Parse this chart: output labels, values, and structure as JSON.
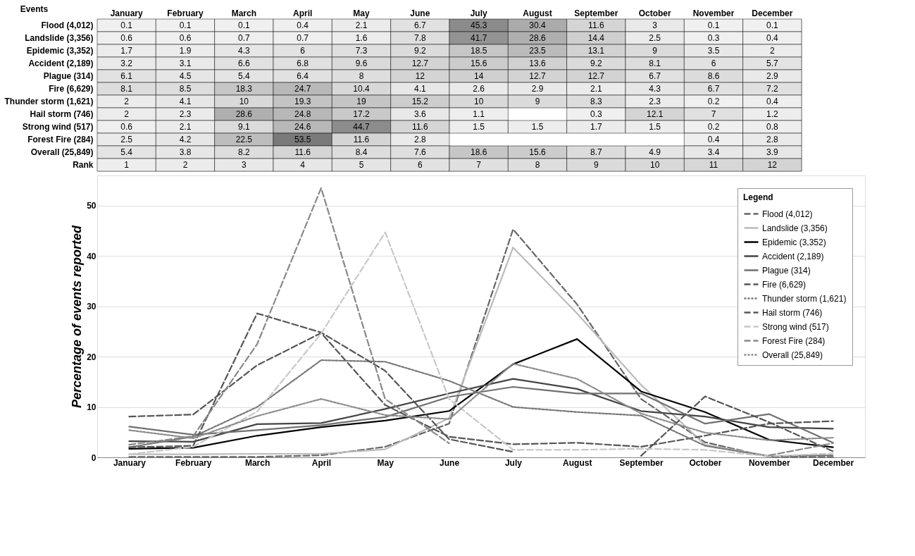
{
  "chart_data": [
    {
      "type": "heatmap",
      "ylabel": "Events",
      "data_labels": true,
      "categories": [
        "January",
        "February",
        "March",
        "April",
        "May",
        "June",
        "July",
        "August",
        "September",
        "October",
        "November",
        "December"
      ],
      "y_categories": [
        "Flood (4,012)",
        "Landslide (3,356)",
        "Epidemic (3,352)",
        "Accident (2,189)",
        "Plague (314)",
        "Fire (6,629)",
        "Thunder storm (1,621)",
        "Hail storm (746)",
        "Strong wind (517)",
        "Forest Fire (284)",
        "Overall (25,849)",
        "Rank"
      ],
      "cells": [
        [
          0.1,
          0.1,
          0.1,
          0.4,
          2.1,
          6.7,
          45.3,
          30.4,
          11.6,
          3,
          0.1,
          0.1
        ],
        [
          0.6,
          0.6,
          0.7,
          0.7,
          1.6,
          7.8,
          41.7,
          28.6,
          14.4,
          2.5,
          0.3,
          0.4
        ],
        [
          1.7,
          1.9,
          4.3,
          6,
          7.3,
          9.2,
          18.5,
          23.5,
          13.1,
          9,
          3.5,
          2
        ],
        [
          3.2,
          3.1,
          6.6,
          6.8,
          9.6,
          12.7,
          15.6,
          13.6,
          9.2,
          8.1,
          6,
          5.7
        ],
        [
          6.1,
          4.5,
          5.4,
          6.4,
          8,
          12,
          14,
          12.7,
          12.7,
          6.7,
          8.6,
          2.9
        ],
        [
          8.1,
          8.5,
          18.3,
          24.7,
          10.4,
          4.1,
          2.6,
          2.9,
          2.1,
          4.3,
          6.7,
          7.2
        ],
        [
          2,
          4.1,
          10,
          19.3,
          19,
          15.2,
          10,
          9,
          8.3,
          2.3,
          0.2,
          0.4
        ],
        [
          2,
          2.3,
          28.6,
          24.8,
          17.2,
          3.6,
          1.1,
          null,
          0.3,
          12.1,
          7,
          1.2
        ],
        [
          0.6,
          2.1,
          9.1,
          24.6,
          44.7,
          11.6,
          1.5,
          1.5,
          1.7,
          1.5,
          0.2,
          0.8
        ],
        [
          2.5,
          4.2,
          22.5,
          53.5,
          11.6,
          2.8,
          null,
          null,
          null,
          null,
          0.4,
          2.8
        ],
        [
          5.4,
          3.8,
          8.2,
          11.6,
          8.4,
          7.6,
          18.6,
          15.6,
          8.7,
          4.9,
          3.4,
          3.9
        ],
        [
          1,
          2,
          3,
          4,
          5,
          6,
          7,
          8,
          9,
          10,
          11,
          12
        ]
      ]
    },
    {
      "type": "line",
      "ylabel": "Percentage of events reported",
      "legend_title": "Legend",
      "legend": "top right",
      "grid": "y",
      "categories": [
        "January",
        "February",
        "March",
        "April",
        "May",
        "June",
        "July",
        "August",
        "September",
        "October",
        "November",
        "December"
      ],
      "ylim": [
        0,
        56
      ],
      "yticks": [
        0,
        10,
        20,
        30,
        40,
        50
      ],
      "series": [
        {
          "name": "Flood (4,012)",
          "color": "#666666",
          "line_style": "dashed",
          "values": [
            0.1,
            0.1,
            0.1,
            0.4,
            2.1,
            6.7,
            45.3,
            30.4,
            11.6,
            3,
            0.1,
            0.1
          ]
        },
        {
          "name": "Landslide (3,356)",
          "color": "#bbbbbb",
          "line_style": "solid",
          "values": [
            0.6,
            0.6,
            0.7,
            0.7,
            1.6,
            7.8,
            41.7,
            28.6,
            14.4,
            2.5,
            0.3,
            0.4
          ]
        },
        {
          "name": "Epidemic (3,352)",
          "color": "#000000",
          "line_style": "solid",
          "values": [
            1.7,
            1.9,
            4.3,
            6,
            7.3,
            9.2,
            18.5,
            23.5,
            13.1,
            9,
            3.5,
            2
          ]
        },
        {
          "name": "Accident (2,189)",
          "color": "#444444",
          "line_style": "solid",
          "values": [
            3.2,
            3.1,
            6.6,
            6.8,
            9.6,
            12.7,
            15.6,
            13.6,
            9.2,
            8.1,
            6,
            5.7
          ]
        },
        {
          "name": "Plague (314)",
          "color": "#707070",
          "line_style": "solid",
          "values": [
            6.1,
            4.5,
            5.4,
            6.4,
            8,
            12,
            14,
            12.7,
            12.7,
            6.7,
            8.6,
            2.9
          ]
        },
        {
          "name": "Fire (6,629)",
          "color": "#555555",
          "line_style": "dashed",
          "values": [
            8.1,
            8.5,
            18.3,
            24.7,
            10.4,
            4.1,
            2.6,
            2.9,
            2.1,
            4.3,
            6.7,
            7.2
          ]
        },
        {
          "name": "Thunder storm (1,621)",
          "color": "#777777",
          "line_style": "dotted",
          "values": [
            2,
            4.1,
            10,
            19.3,
            19,
            15.2,
            10,
            9,
            8.3,
            2.3,
            0.2,
            0.4
          ]
        },
        {
          "name": "Hail storm (746)",
          "color": "#555555",
          "line_style": "dashed",
          "values": [
            2,
            2.3,
            28.6,
            24.8,
            17.2,
            3.6,
            1.1,
            null,
            0.3,
            12.1,
            7,
            1.2
          ]
        },
        {
          "name": "Strong wind (517)",
          "color": "#c8c8c8",
          "line_style": "dashed",
          "values": [
            0.6,
            2.1,
            9.1,
            24.6,
            44.7,
            11.6,
            1.5,
            1.5,
            1.7,
            1.5,
            0.2,
            0.8
          ]
        },
        {
          "name": "Forest Fire (284)",
          "color": "#888888",
          "line_style": "dashed",
          "values": [
            2.5,
            4.2,
            22.5,
            53.5,
            11.6,
            2.8,
            null,
            null,
            null,
            null,
            0.4,
            2.8
          ]
        },
        {
          "name": "Overall (25,849)",
          "color": "#8c8c8c",
          "line_style": "dotted",
          "values": [
            5.4,
            3.8,
            8.2,
            11.6,
            8.4,
            7.6,
            18.6,
            15.6,
            8.7,
            4.9,
            3.4,
            3.9
          ]
        }
      ]
    }
  ]
}
